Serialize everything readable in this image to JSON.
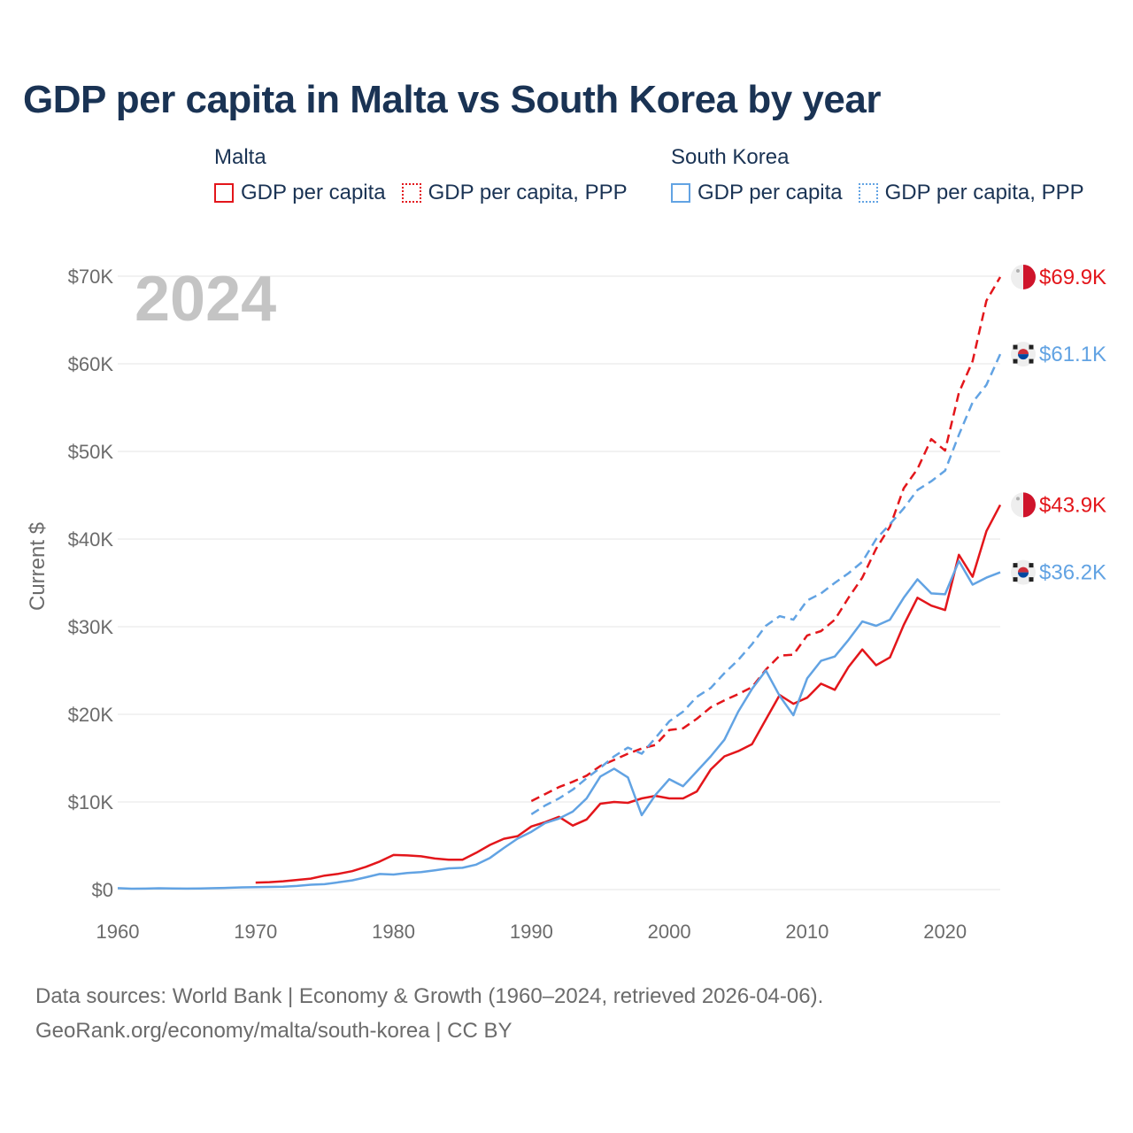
{
  "title": "GDP per capita in Malta vs South Korea by year",
  "legend": {
    "groups": [
      {
        "name": "Malta",
        "items": [
          "GDP per capita",
          "GDP per capita, PPP"
        ]
      },
      {
        "name": "South Korea",
        "items": [
          "GDP per capita",
          "GDP per capita, PPP"
        ]
      }
    ]
  },
  "colors": {
    "malta": "#e3161b",
    "korea": "#62a3e3"
  },
  "year_label": "2024",
  "footer": {
    "line1": "Data sources: World Bank | Economy & Growth (1960–2024, retrieved 2026-04-06).",
    "line2": "GeoRank.org/economy/malta/south-korea | CC BY"
  },
  "chart_data": {
    "type": "line",
    "title": "GDP per capita in Malta vs South Korea by year",
    "xlabel": "",
    "ylabel": "Current $",
    "xlim": [
      1960,
      2024
    ],
    "ylim": [
      0,
      70000
    ],
    "x_ticks": [
      "1960",
      "1970",
      "1980",
      "1990",
      "2000",
      "2010",
      "2020"
    ],
    "y_ticks": [
      "$0",
      "$10K",
      "$20K",
      "$30K",
      "$40K",
      "$50K",
      "$60K",
      "$70K"
    ],
    "series": [
      {
        "name": "Malta GDP per capita",
        "country": "malta",
        "dashed": false,
        "end_label": "$43.9K",
        "x": [
          1970,
          1971,
          1972,
          1973,
          1974,
          1975,
          1976,
          1977,
          1978,
          1979,
          1980,
          1981,
          1982,
          1983,
          1984,
          1985,
          1986,
          1987,
          1988,
          1989,
          1990,
          1991,
          1992,
          1993,
          1994,
          1995,
          1996,
          1997,
          1998,
          1999,
          2000,
          2001,
          2002,
          2003,
          2004,
          2005,
          2006,
          2007,
          2008,
          2009,
          2010,
          2011,
          2012,
          2013,
          2014,
          2015,
          2016,
          2017,
          2018,
          2019,
          2020,
          2021,
          2022,
          2023,
          2024
        ],
        "values": [
          800,
          850,
          950,
          1100,
          1250,
          1600,
          1800,
          2100,
          2600,
          3200,
          3950,
          3900,
          3800,
          3550,
          3400,
          3400,
          4200,
          5100,
          5800,
          6100,
          7200,
          7700,
          8300,
          7300,
          8000,
          9800,
          10000,
          9900,
          10400,
          10700,
          10400,
          10400,
          11200,
          13700,
          15200,
          15800,
          16600,
          19400,
          22200,
          21200,
          21900,
          23500,
          22800,
          25400,
          27400,
          25600,
          26500,
          30200,
          33300,
          32400,
          31900,
          38200,
          35700,
          40900,
          43900
        ]
      },
      {
        "name": "Malta GDP per capita, PPP",
        "country": "malta",
        "dashed": true,
        "end_label": "$69.9K",
        "x": [
          1990,
          1991,
          1992,
          1993,
          1994,
          1995,
          1996,
          1997,
          1998,
          1999,
          2000,
          2001,
          2002,
          2003,
          2004,
          2005,
          2006,
          2007,
          2008,
          2009,
          2010,
          2011,
          2012,
          2013,
          2014,
          2015,
          2016,
          2017,
          2018,
          2019,
          2020,
          2021,
          2022,
          2023,
          2024
        ],
        "values": [
          10100,
          10900,
          11700,
          12300,
          13000,
          14100,
          14800,
          15500,
          16100,
          16500,
          18200,
          18400,
          19500,
          20800,
          21600,
          22300,
          23100,
          25100,
          26700,
          26800,
          29000,
          29500,
          30800,
          33300,
          35600,
          38900,
          41400,
          45800,
          48000,
          51400,
          50100,
          56700,
          60300,
          67200,
          69900
        ]
      },
      {
        "name": "South Korea GDP per capita",
        "country": "korea",
        "dashed": false,
        "end_label": "$36.2K",
        "x": [
          1960,
          1961,
          1962,
          1963,
          1964,
          1965,
          1966,
          1967,
          1968,
          1969,
          1970,
          1971,
          1972,
          1973,
          1974,
          1975,
          1976,
          1977,
          1978,
          1979,
          1980,
          1981,
          1982,
          1983,
          1984,
          1985,
          1986,
          1987,
          1988,
          1989,
          1990,
          1991,
          1992,
          1993,
          1994,
          1995,
          1996,
          1997,
          1998,
          1999,
          2000,
          2001,
          2002,
          2003,
          2004,
          2005,
          2006,
          2007,
          2008,
          2009,
          2010,
          2011,
          2012,
          2013,
          2014,
          2015,
          2016,
          2017,
          2018,
          2019,
          2020,
          2021,
          2022,
          2023,
          2024
        ],
        "values": [
          160,
          100,
          110,
          150,
          120,
          110,
          130,
          160,
          200,
          250,
          280,
          300,
          330,
          410,
          560,
          620,
          830,
          1050,
          1400,
          1780,
          1720,
          1890,
          1990,
          2200,
          2420,
          2480,
          2850,
          3620,
          4750,
          5820,
          6600,
          7600,
          8100,
          8900,
          10400,
          12900,
          13800,
          12800,
          8500,
          10800,
          12600,
          11800,
          13500,
          15200,
          17100,
          20300,
          22900,
          25000,
          22100,
          19900,
          24100,
          26100,
          26600,
          28500,
          30600,
          30100,
          30800,
          33300,
          35400,
          33800,
          33700,
          37500,
          34800,
          35600,
          36200
        ]
      },
      {
        "name": "South Korea GDP per capita, PPP",
        "country": "korea",
        "dashed": true,
        "end_label": "$61.1K",
        "x": [
          1990,
          1991,
          1992,
          1993,
          1994,
          1995,
          1996,
          1997,
          1998,
          1999,
          2000,
          2001,
          2002,
          2003,
          2004,
          2005,
          2006,
          2007,
          2008,
          2009,
          2010,
          2011,
          2012,
          2013,
          2014,
          2015,
          2016,
          2017,
          2018,
          2019,
          2020,
          2021,
          2022,
          2023,
          2024
        ],
        "values": [
          8600,
          9600,
          10400,
          11400,
          12700,
          13900,
          15200,
          16200,
          15500,
          17300,
          19200,
          20300,
          22000,
          23000,
          24700,
          26200,
          28000,
          30100,
          31200,
          30800,
          33000,
          33800,
          35000,
          36100,
          37400,
          40000,
          41700,
          43500,
          45600,
          46600,
          47800,
          51900,
          55600,
          57600,
          61100
        ]
      }
    ]
  }
}
